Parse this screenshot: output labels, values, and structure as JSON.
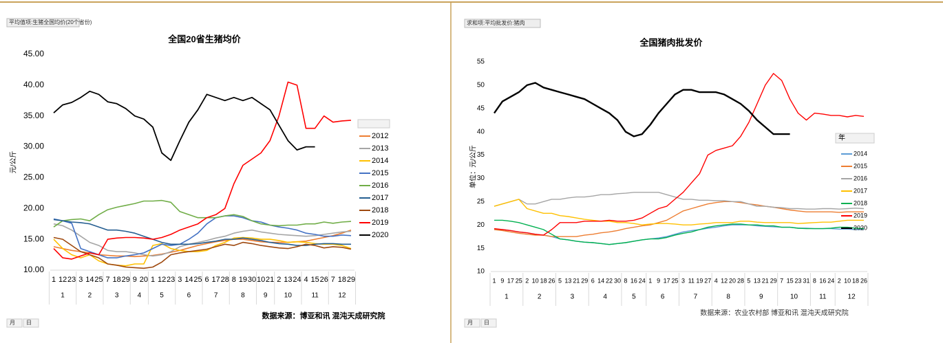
{
  "chart_data": [
    {
      "type": "line",
      "title": "全国20省生猪均价",
      "filter_label": "平均值项:生猪全国均价(20个省份)",
      "y_label": "元/公斤",
      "source": "数据来源：博亚和讯 混沌天成研究院",
      "field_buttons": [
        "月",
        "日"
      ],
      "categories": [
        "1",
        "12",
        "23",
        "3",
        "14",
        "25",
        "7",
        "18",
        "29",
        "9",
        "20",
        "1",
        "12",
        "23",
        "3",
        "14",
        "25",
        "6",
        "17",
        "28",
        "8",
        "19",
        "30",
        "10",
        "21",
        "2",
        "13",
        "24",
        "4",
        "15",
        "26",
        "7",
        "18",
        "29"
      ],
      "months": [
        "1",
        "2",
        "3",
        "4",
        "5",
        "6",
        "7",
        "8",
        "9",
        "10",
        "11",
        "12"
      ],
      "ylim": [
        10,
        45
      ],
      "yticks": [
        {
          "value": 10,
          "label": "10.00"
        },
        {
          "value": 15,
          "label": "15.00"
        },
        {
          "value": 20,
          "label": "20.00"
        },
        {
          "value": 25,
          "label": "25.00"
        },
        {
          "value": 30,
          "label": "30.00"
        },
        {
          "value": 35,
          "label": "35.00"
        },
        {
          "value": 40,
          "label": "40.00"
        },
        {
          "value": 45,
          "label": "45.00"
        }
      ],
      "series": [
        {
          "name": "2012",
          "color": "#ed7d31",
          "values": [
            13.8,
            13.5,
            13.2,
            13,
            12.8,
            12.5,
            12.4,
            12.3,
            12.3,
            12.2,
            12.3,
            12.4,
            12.6,
            12.9,
            13.2,
            13.6,
            14,
            14.3,
            14.6,
            14.8,
            15,
            15,
            14.8,
            14.6,
            14.5,
            14.5,
            14.5,
            14.6,
            14.7,
            15,
            15.3,
            15.6,
            16,
            16.5
          ]
        },
        {
          "name": "2013",
          "color": "#a5a5a5",
          "values": [
            17.5,
            17.2,
            16.5,
            15.5,
            14.5,
            14,
            13.2,
            13,
            13,
            12.8,
            12.5,
            12.3,
            12.5,
            13,
            13.8,
            14.2,
            14.5,
            14.8,
            15.2,
            15.5,
            16,
            16.3,
            16.5,
            16.2,
            16,
            15.8,
            15.7,
            15.6,
            15.5,
            15.6,
            15.8,
            16,
            16.2,
            16.3
          ]
        },
        {
          "name": "2014",
          "color": "#ffc000",
          "values": [
            15,
            13.5,
            12.5,
            12,
            12.5,
            11.5,
            11,
            10.8,
            10.7,
            11,
            11,
            14,
            14.3,
            13.5,
            13.2,
            13,
            13,
            13.2,
            14,
            14.5,
            15.2,
            15.3,
            15.2,
            15,
            15,
            14.8,
            14.5,
            14.6,
            14.5,
            14.3,
            14.2,
            14.2,
            14,
            13.5
          ]
        },
        {
          "name": "2015",
          "color": "#4472c4",
          "values": [
            18.3,
            18,
            17.6,
            13.5,
            13,
            12.5,
            12,
            12,
            12.3,
            12.5,
            12.8,
            13.5,
            14.2,
            14,
            14.2,
            15,
            16,
            17.5,
            18.5,
            18.8,
            18.8,
            18.5,
            18,
            17.8,
            17.3,
            17,
            16.8,
            16.5,
            16,
            15.8,
            15.5,
            15.5,
            15.7,
            15.6
          ]
        },
        {
          "name": "2016",
          "color": "#70ad47",
          "values": [
            17,
            18,
            18.2,
            18.3,
            18,
            19,
            19.8,
            20.2,
            20.5,
            20.8,
            21.2,
            21.2,
            21.3,
            21,
            19.5,
            19,
            18.5,
            18.5,
            18.5,
            18.8,
            19,
            18.7,
            18,
            17.5,
            17.3,
            17.2,
            17.3,
            17.3,
            17.5,
            17.5,
            17.8,
            17.6,
            17.8,
            17.9
          ]
        },
        {
          "name": "2017",
          "color": "#255e91",
          "values": [
            18.2,
            18,
            17.8,
            17.7,
            17.5,
            17,
            16.5,
            16.5,
            16.3,
            16,
            15.5,
            15,
            14.5,
            14.2,
            14.2,
            14.2,
            14.3,
            14.5,
            14.7,
            15,
            15,
            15.2,
            15,
            14.8,
            14.5,
            14.3,
            14.2,
            14,
            14,
            14.2,
            14.3,
            14.3,
            14.2,
            14.2
          ]
        },
        {
          "name": "2018",
          "color": "#9e480e",
          "values": [
            15.3,
            15,
            14,
            13,
            12.5,
            12,
            11,
            10.8,
            10.5,
            10.4,
            10.3,
            10.5,
            11.3,
            12.5,
            12.8,
            13,
            13.2,
            13.4,
            13.8,
            14.2,
            14,
            14.5,
            14.3,
            14,
            13.8,
            13.6,
            13.5,
            13.8,
            14.2,
            14,
            13.6,
            13.8,
            13.7,
            13.4
          ]
        },
        {
          "name": "2019",
          "color": "#ff0000",
          "values": [
            13.5,
            12,
            11.8,
            12.3,
            12.8,
            12.5,
            15,
            15.2,
            15.3,
            15.3,
            15.2,
            15,
            15.3,
            15.8,
            16.5,
            17,
            17.5,
            18.5,
            19,
            20,
            24,
            27,
            28,
            29,
            31,
            35,
            40.5,
            40,
            33,
            33,
            35,
            34,
            34.2,
            34.3
          ]
        },
        {
          "name": "2020",
          "color": "#000000",
          "values": [
            35.5,
            36.8,
            37.2,
            38,
            39,
            38.5,
            37.3,
            37,
            36.2,
            35,
            34.5,
            33.2,
            29,
            27.8,
            31,
            34,
            36,
            38.5,
            38,
            37.5,
            38,
            37.5,
            38,
            37,
            36,
            33.5,
            31,
            29.5,
            30,
            30,
            null,
            null,
            null,
            null
          ]
        }
      ]
    },
    {
      "type": "line",
      "title": "全国猪肉批发价",
      "filter_label": "求和项:平均批发价:猪肉",
      "y_label": "单位：元/公斤",
      "source": "数据来源：农业农村部 博亚和讯 混沌天成研究院",
      "field_buttons": [
        "月",
        "日"
      ],
      "legend_title": "年",
      "categories": [
        "1",
        "9",
        "17",
        "25",
        "2",
        "10",
        "18",
        "26",
        "5",
        "13",
        "21",
        "29",
        "6",
        "14",
        "22",
        "30",
        "8",
        "16",
        "24",
        "1",
        "9",
        "17",
        "25",
        "3",
        "11",
        "19",
        "27",
        "4",
        "12",
        "20",
        "28",
        "5",
        "13",
        "21",
        "29",
        "7",
        "15",
        "23",
        "31",
        "8",
        "16",
        "24",
        "2",
        "10",
        "18",
        "26"
      ],
      "months": [
        "1",
        "2",
        "3",
        "4",
        "5",
        "6",
        "7",
        "8",
        "9",
        "10",
        "11",
        "12"
      ],
      "ylim": [
        10,
        55
      ],
      "yticks": [
        10,
        15,
        20,
        25,
        30,
        35,
        40,
        45,
        50,
        55
      ],
      "series": [
        {
          "name": "2014",
          "color": "#5b9bd5",
          "values": [
            19,
            19,
            18.8,
            18.5,
            18.3,
            18,
            17.8,
            17.5,
            17,
            16.8,
            16.5,
            16.3,
            16.2,
            16,
            15.8,
            16,
            16.2,
            16.5,
            16.8,
            17,
            17.2,
            17.5,
            18,
            18.5,
            18.8,
            19,
            19.3,
            19.5,
            19.8,
            20,
            20,
            20,
            19.8,
            19.7,
            19.6,
            19.5,
            19.5,
            19.3,
            19.3,
            19.2,
            19.2,
            19.2,
            19.1,
            19.1,
            19,
            19
          ]
        },
        {
          "name": "2015",
          "color": "#ed7d31",
          "values": [
            19,
            18.8,
            18.5,
            18.2,
            18,
            17.8,
            17.8,
            17.5,
            17.5,
            17.5,
            17.5,
            17.8,
            18,
            18.3,
            18.5,
            18.8,
            19.2,
            19.5,
            19.8,
            20,
            20.5,
            21,
            22,
            23,
            23.5,
            24,
            24.5,
            24.8,
            25,
            25,
            24.8,
            24.5,
            24.3,
            24,
            23.8,
            23.5,
            23.2,
            23,
            22.8,
            22.8,
            22.8,
            22.8,
            22.7,
            22.8,
            22.8,
            22.8
          ]
        },
        {
          "name": "2016",
          "color": "#a5a5a5",
          "values": [
            24,
            24.5,
            25,
            25.5,
            24.5,
            24.5,
            25,
            25.5,
            25.5,
            25.8,
            26,
            26,
            26.2,
            26.5,
            26.5,
            26.7,
            26.8,
            27,
            27,
            27,
            27,
            26.5,
            26,
            25.5,
            25.5,
            25.3,
            25.3,
            25.2,
            25.2,
            25,
            25,
            24.5,
            24,
            24,
            23.8,
            23.7,
            23.5,
            23.5,
            23.4,
            23.4,
            23.5,
            23.5,
            23.4,
            23.5,
            23.6,
            23.5
          ]
        },
        {
          "name": "2017",
          "color": "#ffc000",
          "values": [
            24,
            24.5,
            25,
            25.5,
            23.5,
            23,
            22.5,
            22.5,
            22,
            21.8,
            21.5,
            21.2,
            21,
            20.8,
            20.8,
            20.5,
            20.5,
            20.3,
            20,
            20.2,
            20.3,
            20.3,
            20.2,
            20,
            20,
            20.2,
            20.3,
            20.5,
            20.5,
            20.5,
            20.8,
            20.8,
            20.6,
            20.5,
            20.5,
            20.5,
            20.5,
            20.3,
            20.4,
            20.5,
            20.6,
            20.6,
            20.8,
            21,
            21,
            21
          ]
        },
        {
          "name": "2018",
          "color": "#00b050",
          "values": [
            21,
            21,
            20.8,
            20.5,
            20,
            19.5,
            19,
            18,
            17,
            16.8,
            16.5,
            16.3,
            16.2,
            16,
            15.8,
            16,
            16.2,
            16.5,
            16.8,
            17,
            17,
            17.3,
            17.8,
            18.2,
            18.5,
            19,
            19.5,
            19.8,
            20,
            20.2,
            20.2,
            20,
            20,
            19.8,
            19.8,
            19.5,
            19.5,
            19.3,
            19.2,
            19.2,
            19.2,
            19.3,
            19.5,
            19.5,
            19.3,
            19.2
          ]
        },
        {
          "name": "2019",
          "color": "#ff0000",
          "values": [
            19.2,
            19,
            18.8,
            18.5,
            18.3,
            18,
            17.8,
            19,
            20.5,
            20.5,
            20.5,
            20.8,
            20.8,
            20.8,
            21,
            20.8,
            20.8,
            21,
            21.5,
            22.5,
            23.5,
            24,
            25.5,
            27,
            29,
            31,
            35,
            36,
            36.5,
            37,
            39,
            42,
            46,
            50,
            52.5,
            51,
            47,
            44,
            42.5,
            44,
            43.8,
            43.5,
            43.5,
            43.2,
            43.5,
            43.3
          ]
        },
        {
          "name": "2020",
          "color": "#000000",
          "values": [
            44,
            46.5,
            47.5,
            48.5,
            50,
            50.5,
            49.5,
            49,
            48.5,
            48,
            47.5,
            47,
            46,
            45,
            44,
            42.5,
            40,
            39,
            39.5,
            41.5,
            44,
            46,
            48,
            49,
            49,
            48.5,
            48.5,
            48.5,
            48,
            47,
            46,
            44.5,
            42.5,
            41,
            39.5,
            39.5,
            39.5,
            null,
            null,
            null,
            null,
            null,
            null,
            null,
            null,
            null
          ]
        }
      ]
    }
  ]
}
